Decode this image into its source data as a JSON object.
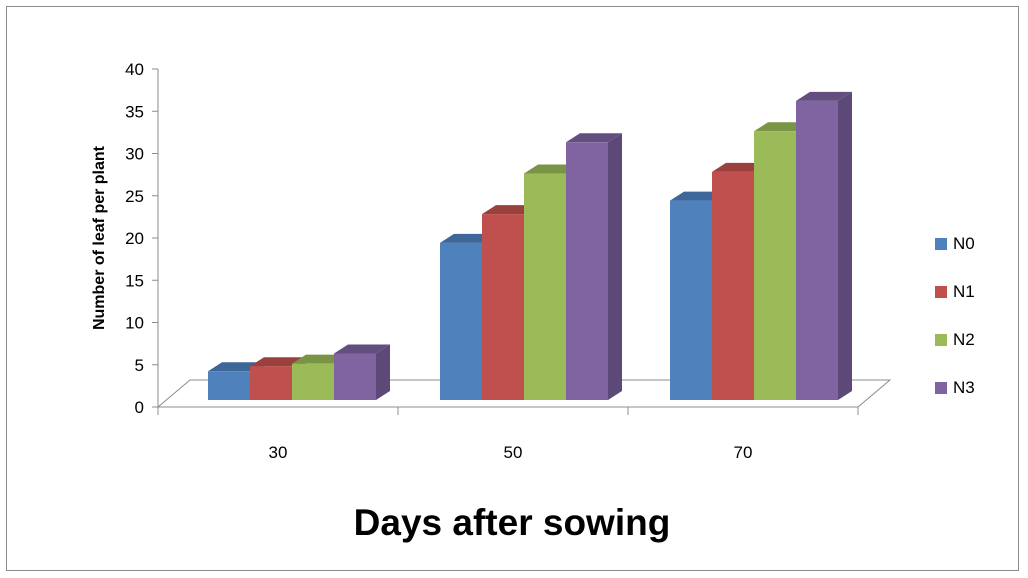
{
  "chart_data": {
    "type": "bar",
    "style": "3d-clustered-column",
    "categories": [
      "30",
      "50",
      "70"
    ],
    "series": [
      {
        "name": "N0",
        "values": [
          3.4,
          18.6,
          23.6
        ],
        "color": "#4F81BD",
        "side": "#3A6190",
        "top": "#3D6699"
      },
      {
        "name": "N1",
        "values": [
          4.0,
          22.0,
          27.0
        ],
        "color": "#C0504D",
        "side": "#8E3A38",
        "top": "#9A403D"
      },
      {
        "name": "N2",
        "values": [
          4.3,
          26.8,
          31.8
        ],
        "color": "#9BBB59",
        "side": "#728A41",
        "top": "#7A9445"
      },
      {
        "name": "N3",
        "values": [
          5.5,
          30.5,
          35.4
        ],
        "color": "#8064A2",
        "side": "#5D4977",
        "top": "#634E80"
      }
    ],
    "yticks": [
      "0",
      "5",
      "10",
      "15",
      "20",
      "25",
      "30",
      "35",
      "40"
    ],
    "ylim": [
      0,
      40
    ],
    "xlabel": "Days after sowing",
    "ylabel": "Number of leaf per plant",
    "legend_position": "right",
    "grid": false
  }
}
